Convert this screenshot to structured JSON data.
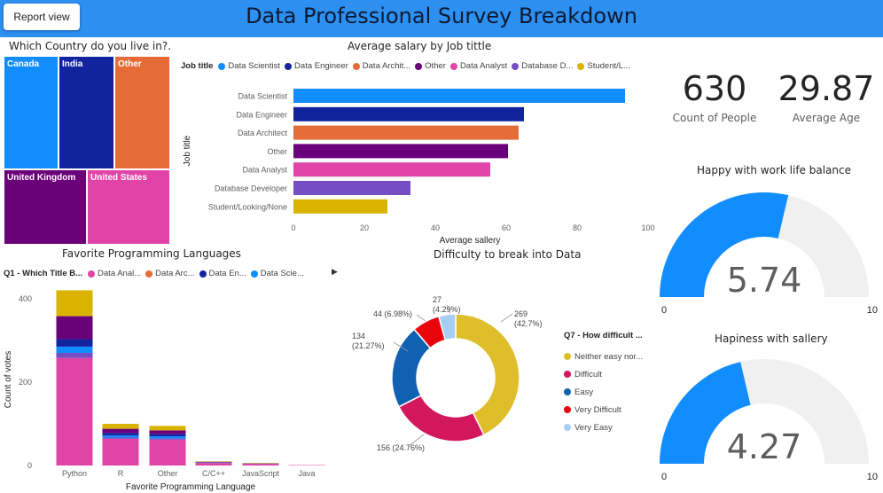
{
  "header": {
    "title": "Data Professional Survey Breakdown",
    "report_button": "Report view"
  },
  "colors": {
    "header": "#2d8ff0",
    "blue": "#118dff",
    "navy": "#12239e",
    "orange": "#e66c37",
    "purple": "#6b007b",
    "pink": "#e044a7",
    "violet": "#744ec2",
    "gold": "#d9b300",
    "gauge_track": "#f0f0f0"
  },
  "treemap": {
    "title": "Which Country do you live in?.",
    "tiles": [
      {
        "label": "Canada",
        "color": "#118dff"
      },
      {
        "label": "India",
        "color": "#12239e"
      },
      {
        "label": "Other",
        "color": "#e66c37"
      },
      {
        "label": "United Kingdom",
        "color": "#6b007b"
      },
      {
        "label": "United States",
        "color": "#e044a7"
      }
    ]
  },
  "kpis": [
    {
      "value": "630",
      "label": "Count of People"
    },
    {
      "value": "29.87",
      "label": "Average Age"
    }
  ],
  "gauges": [
    {
      "title": "Happy with work life balance",
      "value": 5.74,
      "display": "5.74",
      "min": 0,
      "max": 10,
      "min_label": "0",
      "max_label": "10"
    },
    {
      "title": "Hapiness with sallery",
      "value": 4.27,
      "display": "4.27",
      "min": 0,
      "max": 10,
      "min_label": "0",
      "max_label": "10"
    }
  ],
  "chart_data": [
    {
      "type": "bar",
      "orientation": "horizontal",
      "title": "Average salary by Job tittle",
      "legend_title": "Job title",
      "legend": [
        "Data Scientist",
        "Data Engineer",
        "Data Archit...",
        "Other",
        "Data Analyst",
        "Database D...",
        "Student/L..."
      ],
      "categories": [
        "Data Scientist",
        "Data Engineer",
        "Data Architect",
        "Other",
        "Data Analyst",
        "Database Developer",
        "Student/Looking/None"
      ],
      "values": [
        93.5,
        65,
        63.5,
        60.5,
        55.5,
        33,
        26.5
      ],
      "colors": [
        "#118dff",
        "#12239e",
        "#e66c37",
        "#6b007b",
        "#e044a7",
        "#744ec2",
        "#d9b300"
      ],
      "xlabel": "Average sallery",
      "ylabel": "Job title",
      "xlim": [
        0,
        100
      ],
      "xticks": [
        "0",
        "20",
        "40",
        "60",
        "80",
        "100"
      ]
    },
    {
      "type": "bar",
      "stacked": true,
      "title": "Favorite Programming Languages",
      "legend_title": "Q1 - Which Title B...",
      "legend": [
        "Data Anal...",
        "Data Arc...",
        "Data En...",
        "Data Scie..."
      ],
      "legend_colors": [
        "#e044a7",
        "#e66c37",
        "#12239e",
        "#118dff"
      ],
      "categories": [
        "Python",
        "R",
        "Other",
        "C/C++",
        "JavaScript",
        "Java"
      ],
      "series": [
        {
          "values": [
            258,
            64,
            62,
            6,
            4,
            1
          ],
          "color": "#e044a7"
        },
        {
          "values": [
            12,
            3,
            3,
            1,
            0,
            0
          ],
          "color": "#744ec2"
        },
        {
          "values": [
            15,
            5,
            5,
            0,
            0,
            0
          ],
          "color": "#118dff"
        },
        {
          "values": [
            18,
            6,
            5,
            1,
            1,
            0
          ],
          "color": "#12239e"
        },
        {
          "values": [
            55,
            10,
            9,
            1,
            0,
            0
          ],
          "color": "#6b007b"
        },
        {
          "values": [
            62,
            12,
            11,
            1,
            1,
            0
          ],
          "color": "#d9b300"
        }
      ],
      "xlabel": "Favorite Programming Language",
      "ylabel": "Count of votes",
      "ylim": [
        0,
        440
      ],
      "yticks": [
        "0",
        "200",
        "400"
      ]
    },
    {
      "type": "pie",
      "donut": true,
      "title": "Difficulty to break into Data",
      "legend_title": "Q7 - How difficult ...",
      "slices": [
        {
          "label": "Neither easy nor...",
          "value": 269,
          "text": "269",
          "pct": "(42.7%)",
          "color": "#dfbe2b"
        },
        {
          "label": "Difficult",
          "value": 156,
          "text": "156 (24.76%)",
          "pct": "",
          "color": "#d3175f"
        },
        {
          "label": "Easy",
          "value": 134,
          "text": "134",
          "pct": "(21.27%)",
          "color": "#1161b3"
        },
        {
          "label": "Very Difficult",
          "value": 44,
          "text": "44 (6.98%)",
          "pct": "",
          "color": "#e8060c"
        },
        {
          "label": "Very Easy",
          "value": 27,
          "text": "27",
          "pct": "(4.29%)",
          "color": "#a6cef2"
        }
      ]
    }
  ]
}
